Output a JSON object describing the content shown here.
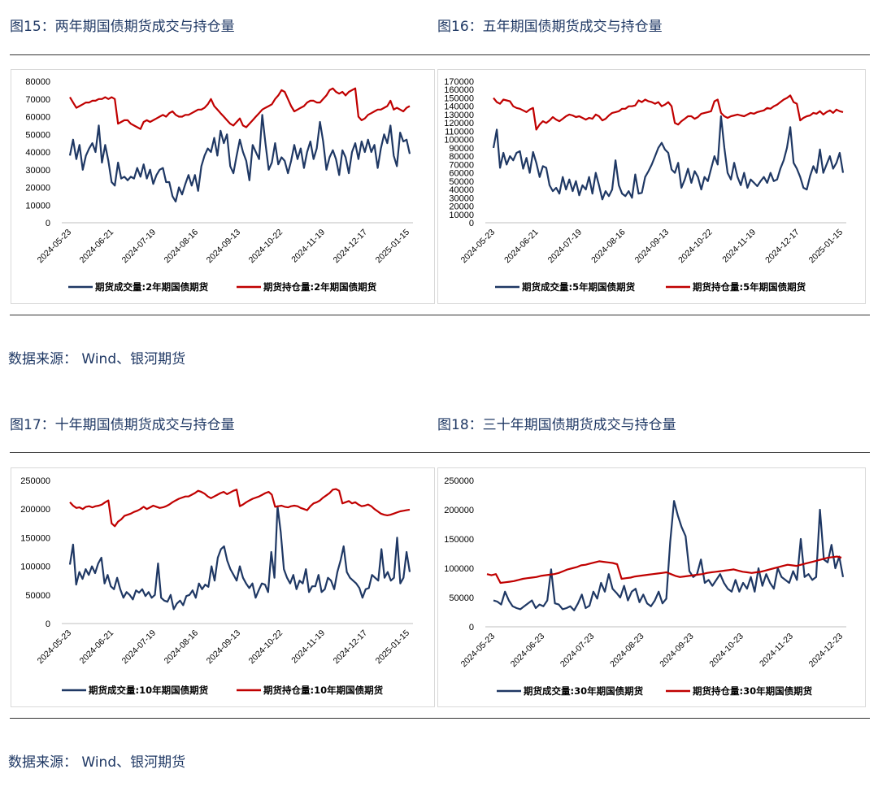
{
  "figures": [
    {
      "title": "图15：两年期国债期货成交与持仓量"
    },
    {
      "title": "图16：五年期国债期货成交与持仓量"
    },
    {
      "title": "图17：十年期国债期货成交与持仓量"
    },
    {
      "title": "图18：三十年期国债期货成交与持仓量"
    }
  ],
  "sources": [
    {
      "text": "数据来源：  Wind、银河期货"
    },
    {
      "text": "数据来源：  Wind、银河期货"
    }
  ],
  "colors": {
    "volume": "#1f3864",
    "open_interest": "#c00000"
  },
  "chart_data": [
    {
      "type": "line",
      "title": "",
      "x_ticks": [
        "2024-05-23",
        "2024-06-21",
        "2024-07-19",
        "2024-08-16",
        "2024-09-13",
        "2024-10-22",
        "2024-11-19",
        "2024-12-17",
        "2025-01-15"
      ],
      "ylim": [
        0,
        80000
      ],
      "y_ticks": [
        "80000",
        "70000",
        "60000",
        "50000",
        "40000",
        "30000",
        "20000",
        "10000",
        "0"
      ],
      "grid": false,
      "legend": "bottom",
      "series": [
        {
          "name": "期货成交量:2年期国债期货",
          "color_key": "volume",
          "values": [
            38000,
            47000,
            36000,
            44000,
            30000,
            38000,
            42000,
            45000,
            40000,
            55000,
            34000,
            44000,
            35000,
            23000,
            21000,
            34000,
            25000,
            26000,
            24000,
            26000,
            25000,
            31000,
            26000,
            33000,
            25000,
            30000,
            22000,
            27000,
            30000,
            31000,
            23000,
            23000,
            15000,
            12000,
            20000,
            16000,
            22000,
            27000,
            21000,
            27000,
            18000,
            32000,
            38000,
            42000,
            40000,
            48000,
            38000,
            52000,
            45000,
            50000,
            32000,
            28000,
            38000,
            47000,
            40000,
            35000,
            24000,
            44000,
            40000,
            36000,
            61000,
            45000,
            30000,
            34000,
            45000,
            33000,
            37000,
            35000,
            28000,
            35000,
            44000,
            36000,
            42000,
            31000,
            40000,
            46000,
            36000,
            42000,
            57000,
            46000,
            30000,
            37000,
            41000,
            36000,
            27000,
            41000,
            37000,
            28000,
            40000,
            45000,
            36000,
            46000,
            40000,
            47000,
            40000,
            44000,
            31000,
            42000,
            50000,
            45000,
            55000,
            38000,
            32000,
            51000,
            46000,
            47000,
            39000
          ]
        },
        {
          "name": "期货持仓量:2年期国债期货",
          "color_key": "open_interest",
          "values": [
            71000,
            68000,
            65000,
            66000,
            67000,
            68000,
            68000,
            69000,
            69000,
            70000,
            70000,
            71000,
            70000,
            71000,
            70000,
            56000,
            57000,
            58000,
            58000,
            56000,
            55000,
            54000,
            53000,
            57000,
            58000,
            57000,
            58000,
            59000,
            60000,
            61000,
            60000,
            62000,
            63000,
            61000,
            60000,
            60000,
            61000,
            61000,
            62000,
            63000,
            64000,
            64000,
            65000,
            67000,
            70000,
            66000,
            64000,
            62000,
            60000,
            58000,
            56000,
            55000,
            57000,
            59000,
            55000,
            54000,
            56000,
            58000,
            60000,
            62000,
            64000,
            65000,
            66000,
            67000,
            70000,
            72000,
            75000,
            74000,
            70000,
            66000,
            63000,
            64000,
            65000,
            66000,
            68000,
            69000,
            69000,
            68000,
            68000,
            70000,
            72000,
            75000,
            76000,
            74000,
            73000,
            74000,
            72000,
            74000,
            75000,
            76000,
            60000,
            58000,
            59000,
            61000,
            62000,
            63000,
            64000,
            64000,
            65000,
            66000,
            69000,
            64000,
            65000,
            64000,
            63000,
            65000,
            66000
          ]
        }
      ]
    },
    {
      "type": "line",
      "title": "",
      "x_ticks": [
        "2024-05-23",
        "2024-06-21",
        "2024-07-19",
        "2024-08-16",
        "2024-09-13",
        "2024-10-22",
        "2024-11-19",
        "2024-12-17",
        "2025-01-15"
      ],
      "ylim": [
        0,
        170000
      ],
      "y_ticks": [
        "170000",
        "160000",
        "150000",
        "140000",
        "130000",
        "120000",
        "110000",
        "100000",
        "90000",
        "80000",
        "70000",
        "60000",
        "50000",
        "40000",
        "30000",
        "20000",
        "10000",
        "0"
      ],
      "grid": false,
      "legend": "bottom",
      "series": [
        {
          "name": "期货成交量:5年期国债期货",
          "color_key": "volume",
          "values": [
            90000,
            112000,
            66000,
            84000,
            70000,
            80000,
            75000,
            84000,
            86000,
            65000,
            78000,
            60000,
            85000,
            72000,
            55000,
            68000,
            66000,
            45000,
            38000,
            42000,
            35000,
            55000,
            40000,
            52000,
            38000,
            50000,
            33000,
            45000,
            40000,
            55000,
            35000,
            60000,
            45000,
            28000,
            38000,
            32000,
            40000,
            75000,
            45000,
            35000,
            32000,
            38000,
            30000,
            58000,
            35000,
            36000,
            55000,
            62000,
            70000,
            80000,
            90000,
            96000,
            88000,
            84000,
            64000,
            60000,
            72000,
            42000,
            52000,
            65000,
            48000,
            62000,
            55000,
            40000,
            55000,
            50000,
            65000,
            80000,
            70000,
            128000,
            90000,
            60000,
            52000,
            72000,
            55000,
            45000,
            60000,
            42000,
            52000,
            48000,
            44000,
            50000,
            55000,
            48000,
            60000,
            50000,
            52000,
            65000,
            75000,
            90000,
            115000,
            72000,
            65000,
            55000,
            42000,
            40000,
            56000,
            68000,
            60000,
            88000,
            60000,
            70000,
            80000,
            65000,
            72000,
            84000,
            60000
          ]
        },
        {
          "name": "期货持仓量:5年期国债期货",
          "color_key": "open_interest",
          "values": [
            150000,
            145000,
            143000,
            148000,
            147000,
            146000,
            140000,
            138000,
            137000,
            135000,
            133000,
            136000,
            138000,
            112000,
            118000,
            122000,
            120000,
            123000,
            127000,
            124000,
            122000,
            125000,
            128000,
            130000,
            129000,
            127000,
            128000,
            126000,
            124000,
            126000,
            125000,
            130000,
            128000,
            123000,
            125000,
            129000,
            132000,
            133000,
            134000,
            137000,
            137000,
            140000,
            140000,
            141000,
            147000,
            145000,
            148000,
            146000,
            145000,
            143000,
            145000,
            140000,
            142000,
            145000,
            140000,
            120000,
            118000,
            122000,
            125000,
            128000,
            128000,
            125000,
            127000,
            131000,
            132000,
            133000,
            134000,
            146000,
            148000,
            132000,
            128000,
            126000,
            128000,
            129000,
            130000,
            129000,
            128000,
            130000,
            132000,
            131000,
            133000,
            134000,
            135000,
            138000,
            137000,
            140000,
            142000,
            145000,
            148000,
            150000,
            153000,
            145000,
            143000,
            123000,
            126000,
            128000,
            129000,
            132000,
            131000,
            134000,
            130000,
            133000,
            135000,
            132000,
            136000,
            134000,
            133000
          ]
        }
      ]
    },
    {
      "type": "line",
      "title": "",
      "x_ticks": [
        "2024-05-23",
        "2024-06-21",
        "2024-07-19",
        "2024-08-16",
        "2024-09-13",
        "2024-10-22",
        "2024-11-19",
        "2024-12-17",
        "2025-01-15"
      ],
      "ylim": [
        0,
        250000
      ],
      "y_ticks": [
        "250000",
        "200000",
        "150000",
        "100000",
        "50000",
        "0"
      ],
      "grid": false,
      "legend": "bottom",
      "series": [
        {
          "name": "期货成交量:10年期国债期货",
          "color_key": "volume",
          "values": [
            103000,
            138000,
            68000,
            90000,
            78000,
            95000,
            85000,
            100000,
            88000,
            105000,
            115000,
            70000,
            85000,
            65000,
            60000,
            80000,
            60000,
            45000,
            55000,
            50000,
            42000,
            58000,
            54000,
            60000,
            48000,
            55000,
            45000,
            50000,
            105000,
            45000,
            40000,
            38000,
            50000,
            25000,
            35000,
            40000,
            32000,
            48000,
            50000,
            58000,
            45000,
            70000,
            60000,
            68000,
            64000,
            100000,
            75000,
            115000,
            130000,
            135000,
            110000,
            95000,
            85000,
            75000,
            100000,
            80000,
            70000,
            62000,
            70000,
            45000,
            58000,
            70000,
            68000,
            55000,
            125000,
            80000,
            205000,
            160000,
            95000,
            80000,
            70000,
            85000,
            60000,
            75000,
            70000,
            95000,
            55000,
            65000,
            65000,
            85000,
            55000,
            60000,
            80000,
            75000,
            60000,
            90000,
            110000,
            135000,
            90000,
            80000,
            75000,
            70000,
            62000,
            45000,
            60000,
            62000,
            85000,
            80000,
            75000,
            130000,
            80000,
            90000,
            75000,
            80000,
            150000,
            70000,
            80000,
            125000,
            90000
          ]
        },
        {
          "name": "期货持仓量:10年期国债期货",
          "color_key": "open_interest",
          "values": [
            212000,
            206000,
            202000,
            203000,
            200000,
            204000,
            205000,
            203000,
            205000,
            206000,
            208000,
            212000,
            215000,
            175000,
            170000,
            178000,
            182000,
            188000,
            190000,
            192000,
            195000,
            197000,
            200000,
            204000,
            200000,
            203000,
            206000,
            204000,
            202000,
            203000,
            205000,
            208000,
            212000,
            215000,
            218000,
            220000,
            222000,
            222000,
            225000,
            228000,
            232000,
            230000,
            227000,
            222000,
            219000,
            222000,
            225000,
            228000,
            230000,
            226000,
            229000,
            232000,
            234000,
            205000,
            208000,
            212000,
            215000,
            218000,
            220000,
            222000,
            225000,
            228000,
            230000,
            225000,
            204000,
            205000,
            206000,
            204000,
            203000,
            205000,
            206000,
            205000,
            202000,
            200000,
            198000,
            205000,
            210000,
            212000,
            215000,
            220000,
            224000,
            228000,
            234000,
            235000,
            232000,
            210000,
            212000,
            214000,
            210000,
            212000,
            208000,
            205000,
            206000,
            208000,
            205000,
            200000,
            196000,
            192000,
            190000,
            189000,
            190000,
            192000,
            194000,
            196000,
            197000,
            198000,
            199000
          ]
        }
      ]
    },
    {
      "type": "line",
      "title": "",
      "x_ticks": [
        "2024-05-23",
        "2024-06-23",
        "2024-07-23",
        "2024-08-23",
        "2024-09-23",
        "2024-10-23",
        "2024-11-23",
        "2024-12-23"
      ],
      "ylim": [
        0,
        250000
      ],
      "y_ticks": [
        "250000",
        "200000",
        "150000",
        "100000",
        "50000",
        "0"
      ],
      "grid": false,
      "legend": "bottom",
      "series": [
        {
          "name": "期货成交量:30年期国债期货",
          "color_key": "volume",
          "values": [
            45000,
            43000,
            38000,
            60000,
            45000,
            35000,
            32000,
            30000,
            35000,
            40000,
            45000,
            32000,
            38000,
            35000,
            45000,
            98000,
            40000,
            38000,
            30000,
            32000,
            35000,
            28000,
            40000,
            55000,
            32000,
            36000,
            60000,
            48000,
            75000,
            60000,
            90000,
            65000,
            58000,
            50000,
            70000,
            45000,
            60000,
            65000,
            42000,
            55000,
            40000,
            35000,
            45000,
            60000,
            40000,
            48000,
            145000,
            215000,
            190000,
            170000,
            155000,
            95000,
            85000,
            90000,
            115000,
            75000,
            80000,
            70000,
            80000,
            90000,
            75000,
            65000,
            60000,
            80000,
            60000,
            75000,
            65000,
            85000,
            60000,
            100000,
            70000,
            90000,
            75000,
            65000,
            100000,
            85000,
            80000,
            75000,
            95000,
            80000,
            150000,
            85000,
            90000,
            80000,
            85000,
            200000,
            115000,
            110000,
            140000,
            100000,
            120000,
            85000
          ]
        },
        {
          "name": "期货持仓量:30年期国债期货",
          "color_key": "open_interest",
          "values": [
            90000,
            88000,
            90000,
            75000,
            76000,
            77000,
            78000,
            80000,
            82000,
            83000,
            84000,
            85000,
            87000,
            88000,
            89000,
            90000,
            92000,
            95000,
            98000,
            100000,
            102000,
            105000,
            106000,
            108000,
            110000,
            112000,
            111000,
            110000,
            109000,
            107000,
            82000,
            83000,
            84000,
            86000,
            87000,
            88000,
            89000,
            90000,
            91000,
            92000,
            93000,
            90000,
            87000,
            85000,
            86000,
            87000,
            88000,
            89000,
            90000,
            92000,
            93000,
            94000,
            95000,
            96000,
            97000,
            98000,
            96000,
            94000,
            93000,
            92000,
            93000,
            94000,
            96000,
            98000,
            100000,
            102000,
            104000,
            106000,
            105000,
            104000,
            106000,
            108000,
            110000,
            112000,
            114000,
            116000,
            118000,
            119000,
            120000,
            118000
          ]
        }
      ]
    }
  ]
}
